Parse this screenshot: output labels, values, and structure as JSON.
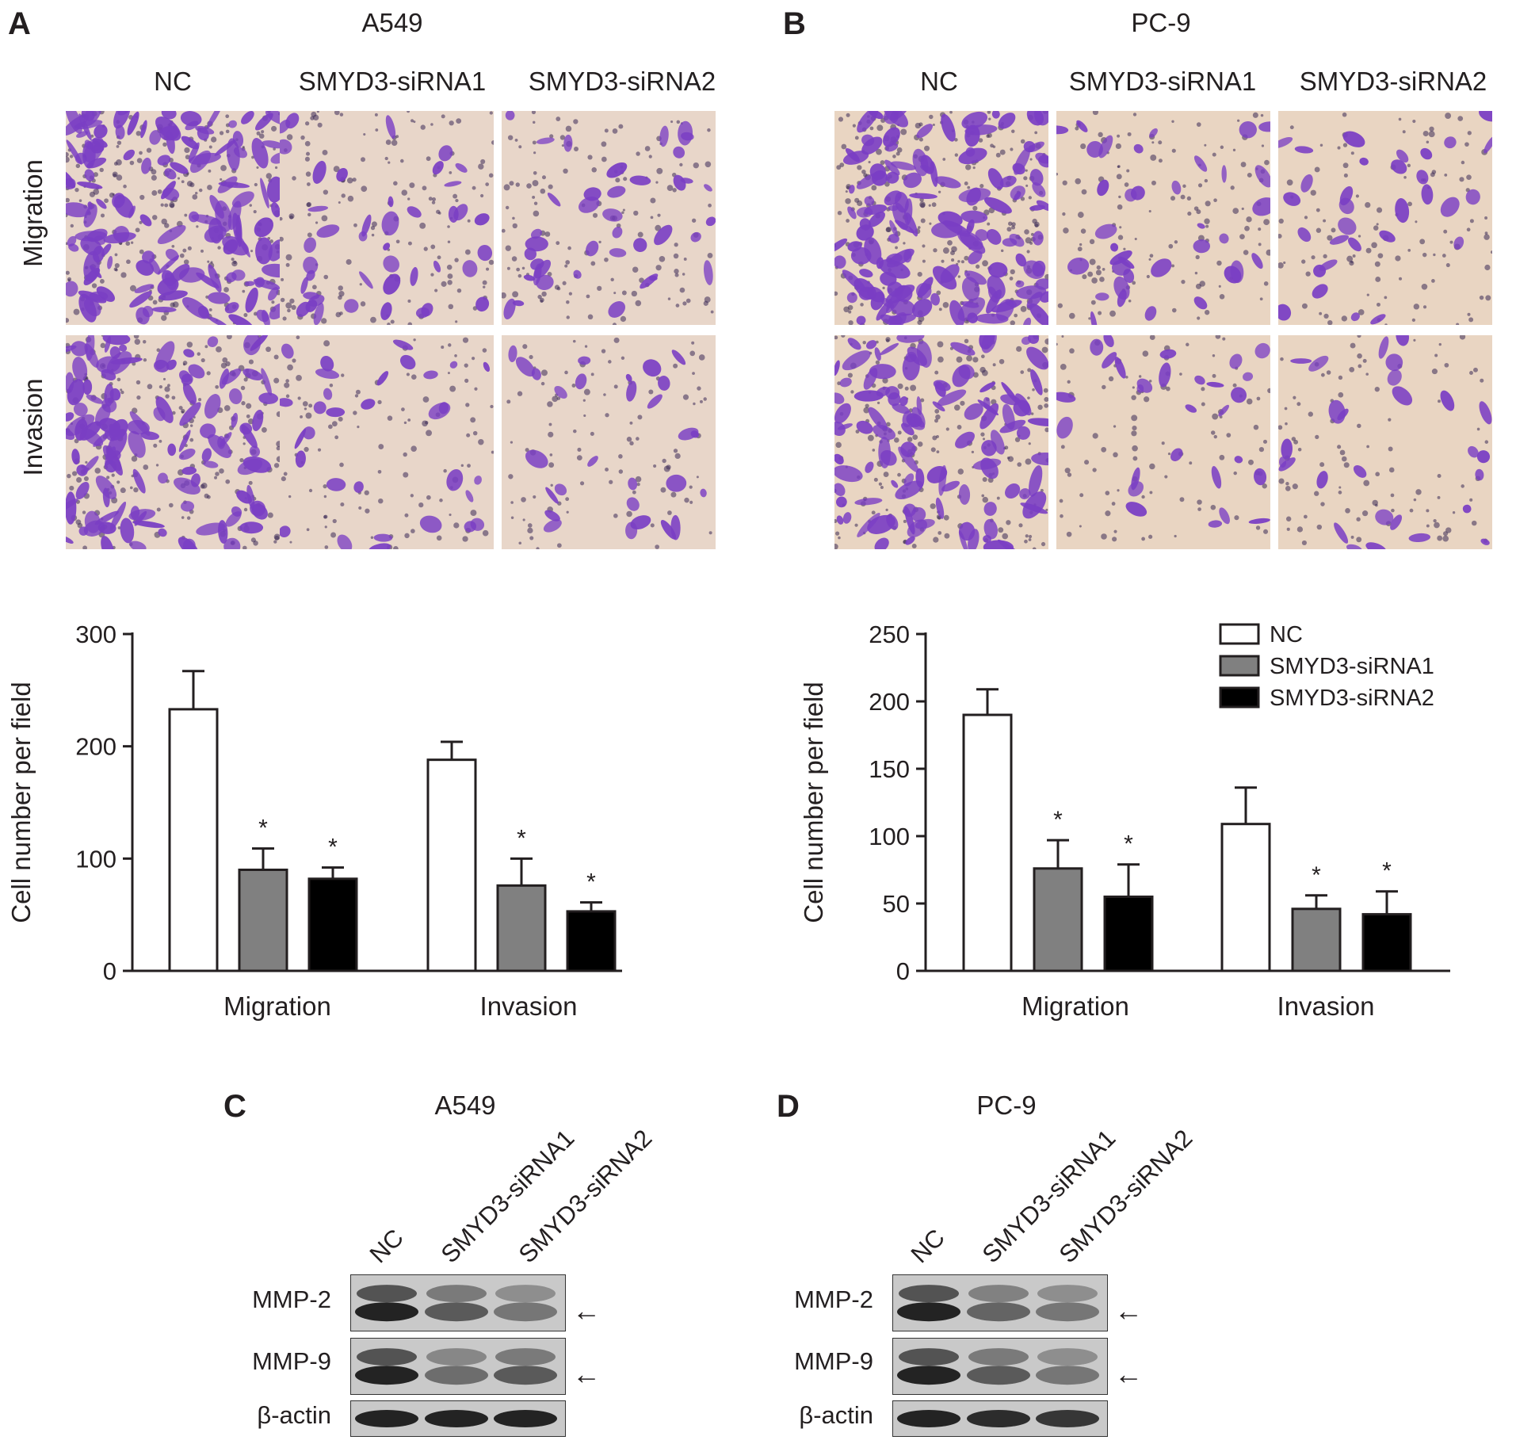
{
  "panels": {
    "A": {
      "label": "A",
      "title": "A549"
    },
    "B": {
      "label": "B",
      "title": "PC-9"
    },
    "C": {
      "label": "C",
      "title": "A549"
    },
    "D": {
      "label": "D",
      "title": "PC-9"
    }
  },
  "micrographs": {
    "col_headers": [
      "NC",
      "SMYD3-siRNA1",
      "SMYD3-siRNA2"
    ],
    "row_labels": [
      "Migration",
      "Invasion"
    ]
  },
  "colors": {
    "stain": "#7a3ec4",
    "background_A": "#e8d6c9",
    "background_B": "#e9d5c2",
    "nc_fill": "#ffffff",
    "sirna1_fill": "#808080",
    "sirna2_fill": "#000000"
  },
  "chart_data": [
    {
      "type": "bar",
      "panel": "A",
      "ylabel": "Cell number per field",
      "categories": [
        "Migration",
        "Invasion"
      ],
      "ylim": [
        0,
        300
      ],
      "yticks": [
        0,
        100,
        200,
        300
      ],
      "series": [
        {
          "name": "NC",
          "values": [
            233,
            188
          ],
          "errors": [
            34,
            16
          ],
          "significant": [
            false,
            false
          ]
        },
        {
          "name": "SMYD3-siRNA1",
          "values": [
            90,
            76
          ],
          "errors": [
            19,
            24
          ],
          "significant": [
            true,
            true
          ]
        },
        {
          "name": "SMYD3-siRNA2",
          "values": [
            82,
            53
          ],
          "errors": [
            10,
            8
          ],
          "significant": [
            true,
            true
          ]
        }
      ],
      "sig_marker": "*"
    },
    {
      "type": "bar",
      "panel": "B",
      "ylabel": "Cell number per field",
      "categories": [
        "Migration",
        "Invasion"
      ],
      "ylim": [
        0,
        250
      ],
      "yticks": [
        0,
        50,
        100,
        150,
        200,
        250
      ],
      "series": [
        {
          "name": "NC",
          "values": [
            190,
            109
          ],
          "errors": [
            19,
            27
          ],
          "significant": [
            false,
            false
          ]
        },
        {
          "name": "SMYD3-siRNA1",
          "values": [
            76,
            46
          ],
          "errors": [
            21,
            10
          ],
          "significant": [
            true,
            true
          ]
        },
        {
          "name": "SMYD3-siRNA2",
          "values": [
            55,
            42
          ],
          "errors": [
            24,
            17
          ],
          "significant": [
            true,
            true
          ]
        }
      ],
      "sig_marker": "*",
      "legend": {
        "placement": "top-right",
        "entries": [
          "NC",
          "SMYD3-siRNA1",
          "SMYD3-siRNA2"
        ]
      }
    }
  ],
  "blots": {
    "lanes": [
      "NC",
      "SMYD3-siRNA1",
      "SMYD3-siRNA2"
    ],
    "rows": [
      "MMP-2",
      "MMP-9",
      "β-actin"
    ],
    "arrow": "←"
  }
}
